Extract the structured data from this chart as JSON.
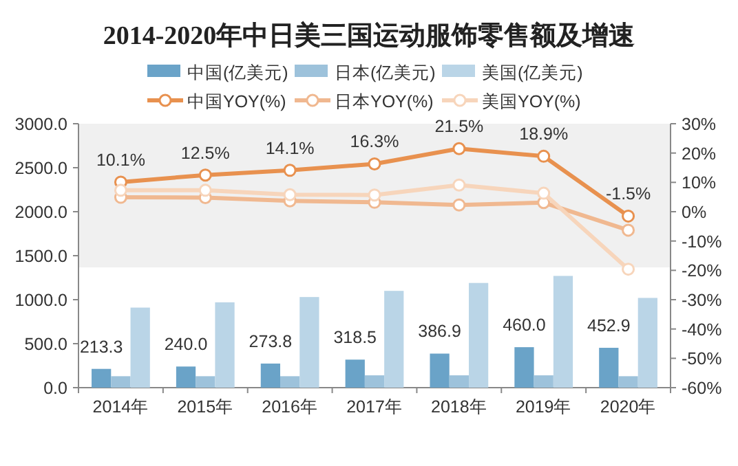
{
  "chart_data": {
    "type": "bar",
    "title": "2014-2020年中日美三国运动服饰零售额及增速",
    "categories": [
      "2014年",
      "2015年",
      "2016年",
      "2017年",
      "2018年",
      "2019年",
      "2020年"
    ],
    "series": [
      {
        "name": "中国(亿美元)",
        "color": "#6aa3c8",
        "values": [
          213.3,
          240.0,
          273.8,
          318.5,
          386.9,
          460.0,
          452.9
        ],
        "value_labels": [
          "213.3",
          "240.0",
          "273.8",
          "318.5",
          "386.9",
          "460.0",
          "452.9"
        ]
      },
      {
        "name": "日本(亿美元)",
        "color": "#9dc2db",
        "values": [
          130,
          130,
          130,
          140,
          140,
          140,
          130
        ]
      },
      {
        "name": "美国(亿美元)",
        "color": "#bad5e7",
        "values": [
          910,
          970,
          1030,
          1100,
          1190,
          1270,
          1020
        ]
      },
      {
        "name": "中国YOY(%)",
        "type": "line",
        "axis": "y2",
        "color": "#e8914f",
        "values": [
          10.1,
          12.5,
          14.1,
          16.3,
          21.5,
          18.9,
          -1.5
        ],
        "value_labels": [
          "10.1%",
          "12.5%",
          "14.1%",
          "16.3%",
          "21.5%",
          "18.9%",
          "-1.5%"
        ]
      },
      {
        "name": "日本YOY(%)",
        "type": "line",
        "axis": "y2",
        "color": "#f0b890",
        "values": [
          4.9,
          4.8,
          3.7,
          3.2,
          2.3,
          3.1,
          -6.3
        ]
      },
      {
        "name": "美国YOY(%)",
        "type": "line",
        "axis": "y2",
        "color": "#f7d5bb",
        "values": [
          7.3,
          7.3,
          5.8,
          5.7,
          9.1,
          6.3,
          -19.6
        ]
      }
    ],
    "ylim": [
      0,
      3000
    ],
    "yticks": [
      {
        "value": 0,
        "label": "0.0"
      },
      {
        "value": 500,
        "label": "500.0"
      },
      {
        "value": 1000,
        "label": "1000.0"
      },
      {
        "value": 1500,
        "label": "1500.0"
      },
      {
        "value": 2000,
        "label": "2000.0"
      },
      {
        "value": 2500,
        "label": "2500.0"
      },
      {
        "value": 3000,
        "label": "3000.0"
      }
    ],
    "y2lim": [
      -60,
      30
    ],
    "y2ticks": [
      {
        "value": 30,
        "label": "30%"
      },
      {
        "value": 20,
        "label": "20%"
      },
      {
        "value": 10,
        "label": "10%"
      },
      {
        "value": 0,
        "label": "0%"
      },
      {
        "value": -10,
        "label": "-10%"
      },
      {
        "value": -20,
        "label": "-20%"
      },
      {
        "value": -30,
        "label": "-30%"
      },
      {
        "value": -40,
        "label": "-40%"
      },
      {
        "value": -50,
        "label": "-50%"
      },
      {
        "value": -60,
        "label": "-60%"
      }
    ],
    "bands": [
      {
        "axis": "y2",
        "from": -19,
        "to": 30,
        "color": "#f0f0f0"
      }
    ],
    "marker": "circle",
    "legend": "top",
    "grid": false
  }
}
